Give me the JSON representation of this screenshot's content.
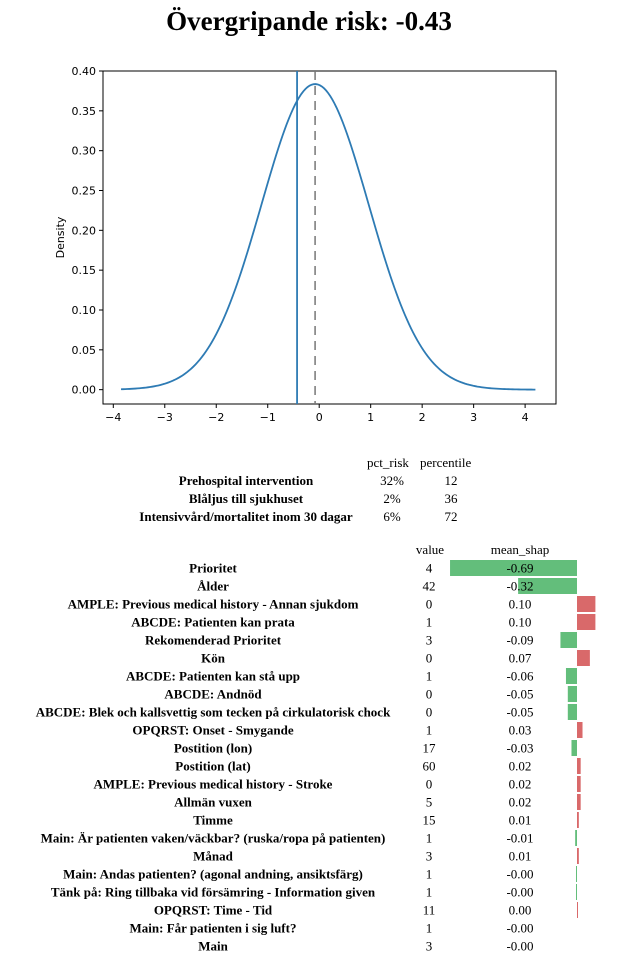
{
  "title": "Övergripande risk: -0.43",
  "chart_data": [
    {
      "type": "line",
      "ylabel": "Density",
      "xlabel": "",
      "xlim": [
        -4.2,
        4.6
      ],
      "ylim": [
        -0.018,
        0.4
      ],
      "x_ticks": [
        -4,
        -3,
        -2,
        -1,
        0,
        1,
        2,
        3,
        4
      ],
      "x_tick_labels": [
        "−4",
        "−3",
        "−2",
        "−1",
        "0",
        "1",
        "2",
        "3",
        "4"
      ],
      "y_ticks": [
        0.0,
        0.05,
        0.1,
        0.15,
        0.2,
        0.25,
        0.3,
        0.35,
        0.4
      ],
      "y_tick_labels": [
        "0.00",
        "0.05",
        "0.10",
        "0.15",
        "0.20",
        "0.25",
        "0.30",
        "0.35",
        "0.40"
      ],
      "curve": {
        "distribution": "normal",
        "mean": -0.08,
        "sd": 1.04,
        "x_start": -3.85,
        "x_end": 4.2,
        "color": "#2e7bb4"
      },
      "risk_line_x": -0.43,
      "mean_line_x": -0.08,
      "risk_line_color": "#2e7bb4",
      "mean_line_color": "#777777"
    },
    {
      "type": "table",
      "columns": [
        "pct_risk",
        "percentile"
      ],
      "rows": [
        {
          "label": "Prehospital intervention",
          "pct_risk": "32%",
          "percentile": "12"
        },
        {
          "label": "Blåljus till sjukhuset",
          "pct_risk": "2%",
          "percentile": "36"
        },
        {
          "label": "Intensivvård/mortalitet inom 30 dagar",
          "pct_risk": "6%",
          "percentile": "72"
        }
      ]
    },
    {
      "type": "bar",
      "columns": [
        "value",
        "mean_shap"
      ],
      "positive_color": "#d9696a",
      "negative_color": "#63be7b",
      "rows": [
        {
          "label": "Prioritet",
          "value": "4",
          "shap": "-0.69",
          "bar": -0.69
        },
        {
          "label": "Ålder",
          "value": "42",
          "shap": "-0.32",
          "bar": -0.32
        },
        {
          "label": "AMPLE: Previous medical history - Annan sjukdom",
          "value": "0",
          "shap": "0.10",
          "bar": 0.1
        },
        {
          "label": "ABCDE: Patienten kan prata",
          "value": "1",
          "shap": "0.10",
          "bar": 0.1
        },
        {
          "label": "Rekomenderad Prioritet",
          "value": "3",
          "shap": "-0.09",
          "bar": -0.09
        },
        {
          "label": "Kön",
          "value": "0",
          "shap": "0.07",
          "bar": 0.07
        },
        {
          "label": "ABCDE: Patienten kan stå upp",
          "value": "1",
          "shap": "-0.06",
          "bar": -0.06
        },
        {
          "label": "ABCDE: Andnöd",
          "value": "0",
          "shap": "-0.05",
          "bar": -0.05
        },
        {
          "label": "ABCDE: Blek och kallsvettig som tecken på cirkulatorisk chock",
          "value": "0",
          "shap": "-0.05",
          "bar": -0.05
        },
        {
          "label": "OPQRST: Onset - Smygande",
          "value": "1",
          "shap": "0.03",
          "bar": 0.03
        },
        {
          "label": "Postition (lon)",
          "value": "17",
          "shap": "-0.03",
          "bar": -0.03
        },
        {
          "label": "Postition (lat)",
          "value": "60",
          "shap": "0.02",
          "bar": 0.02
        },
        {
          "label": "AMPLE: Previous medical history - Stroke",
          "value": "0",
          "shap": "0.02",
          "bar": 0.02
        },
        {
          "label": "Allmän vuxen",
          "value": "5",
          "shap": "0.02",
          "bar": 0.02
        },
        {
          "label": "Timme",
          "value": "15",
          "shap": "0.01",
          "bar": 0.01
        },
        {
          "label": "Main: Är patienten vaken/väckbar? (ruska/ropa på patienten)",
          "value": "1",
          "shap": "-0.01",
          "bar": -0.01
        },
        {
          "label": "Månad",
          "value": "3",
          "shap": "0.01",
          "bar": 0.01
        },
        {
          "label": "Main: Andas patienten? (agonal andning, ansiktsfärg)",
          "value": "1",
          "shap": "-0.00",
          "bar": -0.004
        },
        {
          "label": "Tänk på: Ring tillbaka vid försämring - Information given",
          "value": "1",
          "shap": "-0.00",
          "bar": -0.003
        },
        {
          "label": "OPQRST: Time - Tid",
          "value": "11",
          "shap": "0.00",
          "bar": 0.004
        },
        {
          "label": "Main: Får patienten i sig luft?",
          "value": "1",
          "shap": "-0.00",
          "bar": 0.0
        },
        {
          "label": "Main",
          "value": "3",
          "shap": "-0.00",
          "bar": 0.0
        }
      ]
    }
  ]
}
